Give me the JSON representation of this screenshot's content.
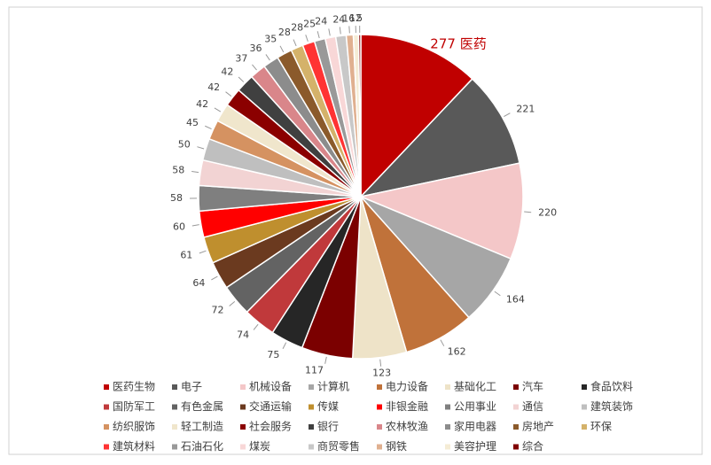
{
  "chart_data": {
    "type": "pie",
    "categories": [
      "医药生物",
      "电子",
      "机械设备",
      "计算机",
      "电力设备",
      "基础化工",
      "汽车",
      "食品饮料",
      "国防军工",
      "有色金属",
      "交通运输",
      "传媒",
      "非银金融",
      "公用事业",
      "通信",
      "建筑装饰",
      "纺织服饰",
      "轻工制造",
      "社会服务",
      "银行",
      "农林牧渔",
      "家用电器",
      "房地产",
      "环保",
      "建筑材料",
      "石油石化",
      "煤炭",
      "商贸零售",
      "钢铁",
      "美容护理",
      "综合"
    ],
    "values": [
      277,
      221,
      220,
      164,
      162,
      123,
      117,
      75,
      74,
      72,
      64,
      61,
      60,
      58,
      58,
      50,
      45,
      42,
      42,
      42,
      37,
      36,
      35,
      28,
      28,
      25,
      24,
      24,
      16,
      12,
      5
    ],
    "value_labels": [
      "277 医药",
      "221",
      "220",
      "164",
      "162",
      "123",
      "117",
      "75",
      "74",
      "72",
      "64",
      "61",
      "60",
      "58",
      "58",
      "50",
      "45",
      "42",
      "42",
      "42",
      "37",
      "36",
      "35",
      "28",
      "28",
      "25",
      "24",
      "24",
      "16",
      "12",
      "5"
    ],
    "colors": [
      "#c00000",
      "#595959",
      "#f4c7c8",
      "#a6a6a6",
      "#c0723a",
      "#eee3c8",
      "#7b0000",
      "#262626",
      "#c0393b",
      "#636363",
      "#6b3a1f",
      "#bf8f2e",
      "#ff0000",
      "#7f7f7f",
      "#f2d3d3",
      "#bfbfbf",
      "#d59261",
      "#f0e6cc",
      "#8b0000",
      "#404040",
      "#d9868a",
      "#8c8c8c",
      "#8b5a2b",
      "#d4b26a",
      "#ff3333",
      "#999999",
      "#f8d7d7",
      "#c8c8c8",
      "#e0b090",
      "#f5ecd5",
      "#800000"
    ]
  }
}
